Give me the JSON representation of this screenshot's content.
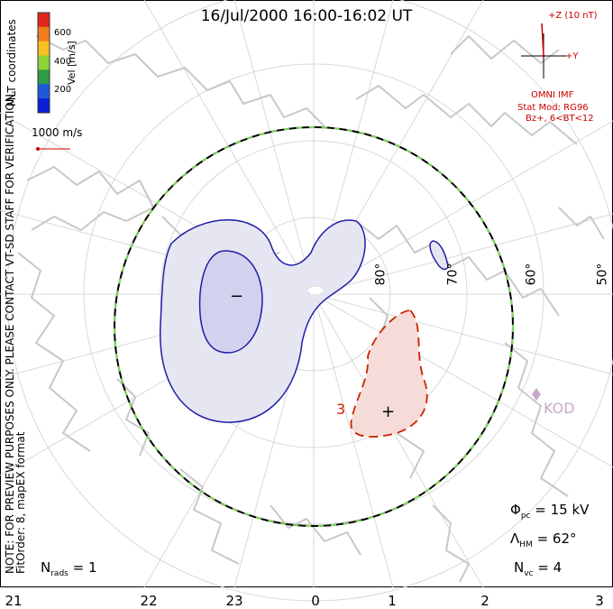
{
  "title": "16/Jul/2000 16:00-16:02 UT",
  "colorbar": {
    "ticks": [
      "600",
      "400",
      "200"
    ],
    "label": "Vel [m/s]",
    "colors": [
      "#e3261a",
      "#f07d1f",
      "#f5c020",
      "#8ed43a",
      "#2f9a48",
      "#1f5ad6",
      "#0a1fd9"
    ]
  },
  "coordinates_label": "MLT coordinates",
  "vector_scale_label": "1000 m/s",
  "note_line1": "NOTE: FOR PREVIEW PURPOSES ONLY. PLEASE CONTACT VT-SD STAFF FOR VERIFICATION.",
  "note_line2": "FitOrder: 8, mapEX format",
  "imf": {
    "z_label": "+Z (10 nT)",
    "y_label": "+Y",
    "source": "OMNI IMF",
    "stat_mod": "Stat Mod: RG96",
    "condition": "Bz+, 6<BT<12"
  },
  "stats": {
    "phi_pc": "= 15 kV",
    "lambda_hm": "= 62°",
    "n_vc": "= 4",
    "n_rads": "= 1"
  },
  "stat_symbols": {
    "phi": "Φ",
    "phi_sub": "pc",
    "lambda": "Λ",
    "lambda_sub": "HM",
    "n": "N",
    "nvc_sub": "vc",
    "nrads_sub": "rads"
  },
  "latitude_labels": [
    "80°",
    "70°",
    "60°",
    "50°"
  ],
  "mlt_labels": [
    "21",
    "22",
    "23",
    "0",
    "1",
    "2",
    "3"
  ],
  "cells": {
    "negative_marker": "−",
    "positive_marker": "+",
    "contour_label": "3"
  },
  "radar": {
    "name": "KOD",
    "color": "#c8a8c8"
  },
  "colors": {
    "negative": "#1f1fa8",
    "negative_fill": "#e6e6f2",
    "negative_inner": "#d2d2ee",
    "positive": "#cc2200",
    "positive_fill": "#f6dcd8",
    "land": "#c8c8c8",
    "grid": "#d8d8d8",
    "hmb": "#7fd85a"
  }
}
